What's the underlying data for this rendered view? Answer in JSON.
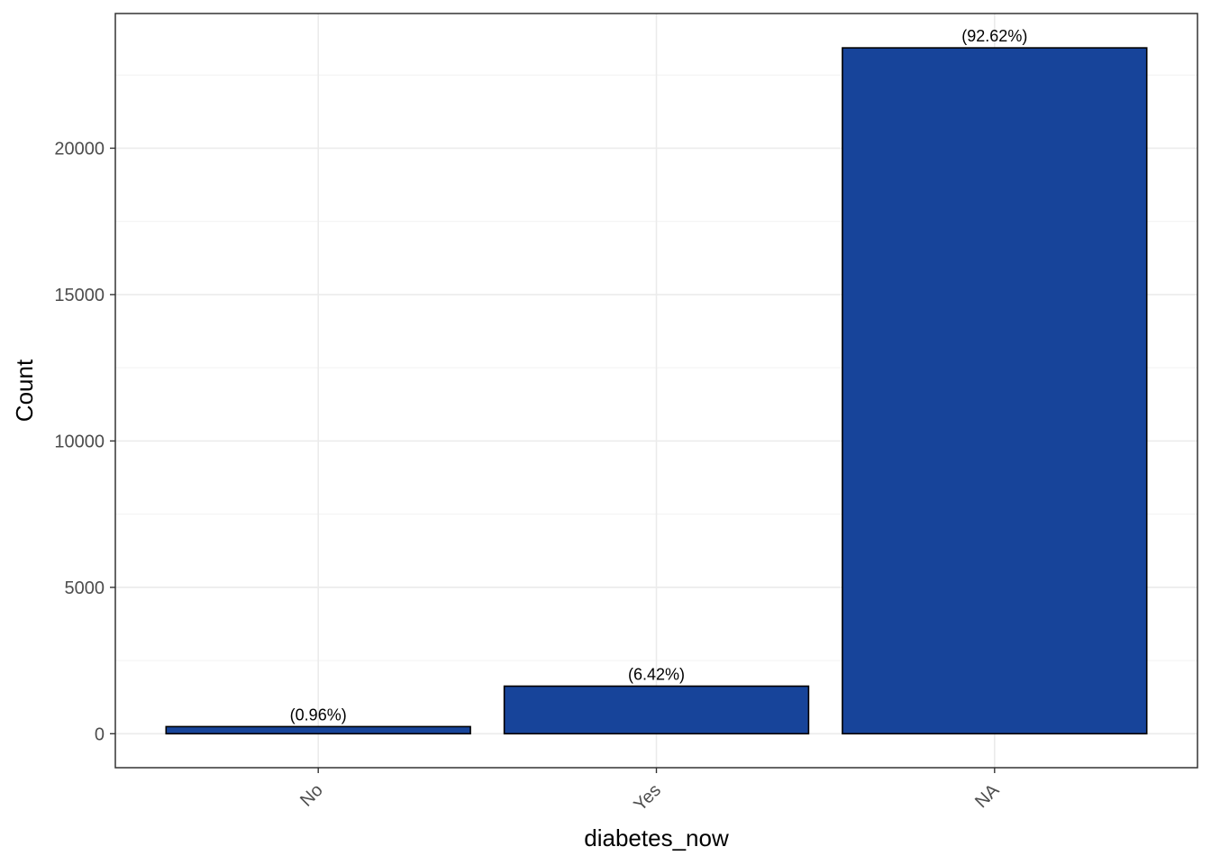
{
  "chart_data": {
    "type": "bar",
    "title": "",
    "xlabel": "diabetes_now",
    "ylabel": "Count",
    "categories": [
      "No",
      "Yes",
      "NA"
    ],
    "values": [
      243,
      1625,
      23427
    ],
    "data_labels": [
      "(0.96%)",
      "(6.42%)",
      "(92.62%)"
    ],
    "ylim": [
      -1160,
      24600
    ],
    "yticks": [
      0,
      5000,
      10000,
      15000,
      20000
    ],
    "ytick_labels": [
      "0",
      "5000",
      "10000",
      "15000",
      "20000"
    ],
    "grid": true,
    "legend": "none",
    "colors": {
      "bar_fill": "#17449A",
      "bar_stroke": "#000000",
      "grid_major": "#EBEBEB",
      "grid_minor": "#F2F2F2",
      "panel_border": "#333333"
    }
  }
}
